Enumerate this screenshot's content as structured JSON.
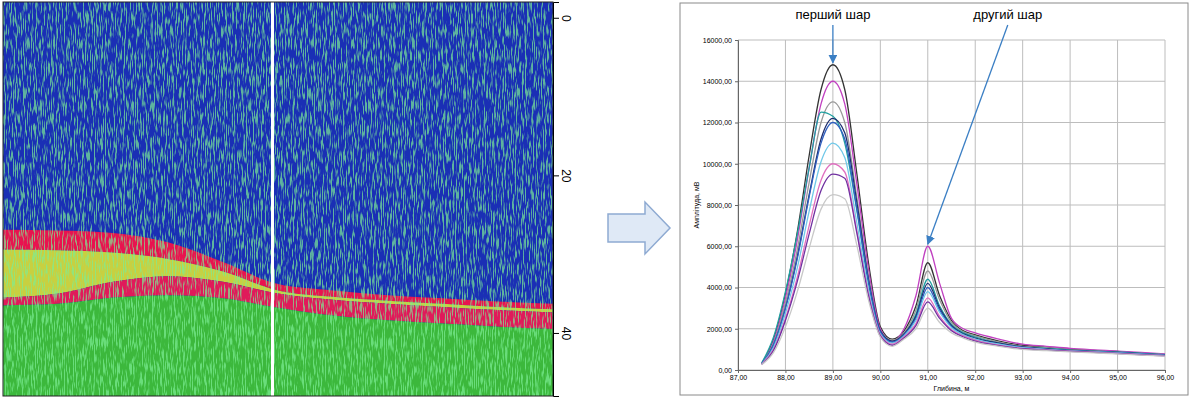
{
  "chart_data": [
    {
      "type": "echogram",
      "color": "#1a2fb5",
      "x": [
        0,
        10,
        20,
        30,
        40,
        50,
        60,
        70,
        80,
        90,
        100
      ],
      "xlim": [
        0,
        100
      ],
      "ylim": [
        -2,
        48
      ],
      "yticks": [
        0,
        20,
        40
      ],
      "tick_labels": "y",
      "cursor_x": 49,
      "series": [
        {
          "color": "#e8134f",
          "values": [
            26.9,
            27.0,
            27.3,
            28.5,
            31.0,
            33.8,
            34.6,
            35.2,
            35.6,
            36.0,
            36.3
          ]
        },
        {
          "color": "#c8d040",
          "values": [
            29.4,
            29.5,
            29.8,
            30.6,
            32.2,
            34.6,
            35.4,
            35.9,
            36.3,
            36.7,
            37.0
          ]
        },
        {
          "color": "#e01a5a",
          "values": [
            35.5,
            35.0,
            33.5,
            32.8,
            33.5,
            35.0,
            35.8,
            36.3,
            36.7,
            37.1,
            37.4
          ]
        },
        {
          "color": "#3cb83c",
          "values": [
            36.5,
            36.3,
            35.5,
            35.2,
            35.6,
            36.8,
            37.8,
            38.4,
            38.8,
            39.2,
            39.5
          ]
        }
      ]
    },
    {
      "type": "line",
      "x_label": "Глибина, м",
      "y_label": "Амплітуда, мВ",
      "grid": true,
      "x": [
        87.5,
        87.75,
        88,
        88.25,
        88.5,
        88.75,
        89,
        89.25,
        89.5,
        89.75,
        90,
        90.25,
        90.5,
        90.75,
        91,
        91.25,
        91.5,
        91.75,
        92,
        92.5,
        93,
        93.5,
        94,
        94.5,
        95,
        95.5,
        96
      ],
      "xlim": [
        87,
        96
      ],
      "xticks": [
        {
          "value": 87,
          "label": "87,00"
        },
        {
          "value": 88,
          "label": "88,00"
        },
        {
          "value": 89,
          "label": "89,00"
        },
        {
          "value": 90,
          "label": "90,00"
        },
        {
          "value": 91,
          "label": "91,00"
        },
        {
          "value": 92,
          "label": "92,00"
        },
        {
          "value": 93,
          "label": "93,00"
        },
        {
          "value": 94,
          "label": "94,00"
        },
        {
          "value": 95,
          "label": "95,00"
        },
        {
          "value": 96,
          "label": "96,00"
        }
      ],
      "ylim": [
        0,
        16000
      ],
      "yticks": [
        {
          "value": 0,
          "label": "0,00"
        },
        {
          "value": 2000,
          "label": "2000,00"
        },
        {
          "value": 4000,
          "label": "4000,00"
        },
        {
          "value": 6000,
          "label": "6000,00"
        },
        {
          "value": 8000,
          "label": "8000,00"
        },
        {
          "value": 10000,
          "label": "10000,00"
        },
        {
          "value": 12000,
          "label": "12000,00"
        },
        {
          "value": 14000,
          "label": "14000,00"
        },
        {
          "value": 16000,
          "label": "16000,00"
        }
      ],
      "annotations": [
        {
          "text": "перший шар",
          "x": 89,
          "y": 14800
        },
        {
          "text": "другий шар",
          "x": 91,
          "y": 6000
        }
      ],
      "series": [
        {
          "color": "#333333",
          "values": [
            300,
            1500,
            3700,
            6700,
            10400,
            13600,
            14800,
            13600,
            9600,
            5200,
            2100,
            1500,
            1900,
            3100,
            5200,
            3600,
            2400,
            1900,
            1700,
            1400,
            1200,
            1100,
            1000,
            950,
            900,
            820,
            760
          ]
        },
        {
          "color": "#c040c0",
          "values": [
            280,
            1400,
            3500,
            6300,
            9800,
            12900,
            14000,
            12900,
            9100,
            4900,
            2000,
            1400,
            2000,
            3600,
            6000,
            4200,
            2500,
            2000,
            1800,
            1500,
            1250,
            1150,
            1050,
            980,
            920,
            850,
            780
          ]
        },
        {
          "color": "#999999",
          "values": [
            320,
            1300,
            3250,
            5850,
            9100,
            12000,
            13000,
            12000,
            8450,
            4550,
            1900,
            1450,
            1800,
            2900,
            4800,
            3400,
            2300,
            1850,
            1650,
            1350,
            1150,
            1080,
            980,
            930,
            870,
            800,
            740
          ]
        },
        {
          "color": "#20a0a0",
          "values": [
            350,
            1600,
            3800,
            6600,
            9800,
            12500,
            12300,
            11000,
            7800,
            4200,
            1800,
            1350,
            1700,
            2700,
            4400,
            3100,
            2200,
            1800,
            1600,
            1300,
            1100,
            1050,
            960,
            920,
            880,
            810,
            750
          ]
        },
        {
          "color": "#1f2f6f",
          "values": [
            300,
            1200,
            3000,
            5500,
            8500,
            11200,
            12200,
            11500,
            8200,
            4400,
            1900,
            1400,
            1750,
            2600,
            4200,
            3000,
            2150,
            1750,
            1550,
            1300,
            1120,
            1030,
            950,
            900,
            850,
            790,
            730
          ]
        },
        {
          "color": "#3060c0",
          "values": [
            310,
            1250,
            3000,
            5400,
            8400,
            11000,
            12000,
            11200,
            7900,
            4300,
            1850,
            1350,
            1700,
            2500,
            4000,
            2900,
            2100,
            1700,
            1500,
            1250,
            1100,
            1000,
            940,
            890,
            840,
            780,
            720
          ]
        },
        {
          "color": "#70c8e8",
          "values": [
            290,
            1100,
            2750,
            4950,
            7700,
            10100,
            11000,
            10300,
            7200,
            3900,
            1750,
            1300,
            1650,
            2400,
            3800,
            2800,
            2050,
            1700,
            1500,
            1250,
            1080,
            1000,
            930,
            880,
            830,
            770,
            710
          ]
        },
        {
          "color": "#e070c0",
          "values": [
            280,
            1000,
            2500,
            4500,
            7000,
            9200,
            10000,
            9600,
            6800,
            3700,
            1700,
            1250,
            1600,
            2250,
            3500,
            2600,
            1950,
            1650,
            1450,
            1200,
            1050,
            980,
            910,
            860,
            810,
            750,
            700
          ]
        },
        {
          "color": "#7030a0",
          "values": [
            270,
            950,
            2400,
            4300,
            6600,
            8700,
            9500,
            9300,
            6700,
            3600,
            1650,
            1200,
            1550,
            2150,
            3300,
            2500,
            1900,
            1600,
            1400,
            1180,
            1030,
            960,
            900,
            850,
            800,
            740,
            690
          ]
        },
        {
          "color": "#c8c8c8",
          "values": [
            260,
            850,
            2100,
            3800,
            5900,
            7800,
            8500,
            8300,
            6100,
            3400,
            1600,
            1150,
            1500,
            2000,
            3000,
            2300,
            1800,
            1550,
            1350,
            1150,
            1000,
            940,
            880,
            830,
            780,
            720,
            670
          ]
        }
      ]
    }
  ]
}
